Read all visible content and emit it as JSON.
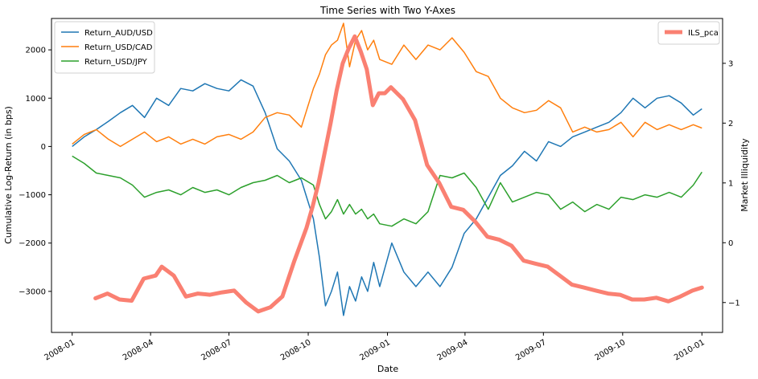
{
  "chart_data": {
    "type": "line",
    "title": "Time Series with Two Y-Axes",
    "xlabel": "Date",
    "ylabel_left": "Cumulative Log-Return (in bps)",
    "ylabel_right": "Market Illiquidity",
    "xlim": [
      "2007-12-08",
      "2010-01-25"
    ],
    "ylim_left": [
      -3850,
      2650
    ],
    "ylim_right": [
      -1.5,
      3.75
    ],
    "grid": false,
    "legend_left_position": "top-left",
    "legend_right_position": "top-right",
    "x_ticks": [
      {
        "date": "2008-01-01",
        "label": "2008-01"
      },
      {
        "date": "2008-04-01",
        "label": "2008-04"
      },
      {
        "date": "2008-07-01",
        "label": "2008-07"
      },
      {
        "date": "2008-10-01",
        "label": "2008-10"
      },
      {
        "date": "2009-01-01",
        "label": "2009-01"
      },
      {
        "date": "2009-04-01",
        "label": "2009-04"
      },
      {
        "date": "2009-07-01",
        "label": "2009-07"
      },
      {
        "date": "2009-10-01",
        "label": "2009-10"
      },
      {
        "date": "2010-01-01",
        "label": "2010-01"
      }
    ],
    "y_ticks_left": [
      {
        "value": 2000,
        "label": "2000"
      },
      {
        "value": 1000,
        "label": "1000"
      },
      {
        "value": 0,
        "label": "0"
      },
      {
        "value": -1000,
        "label": "−1000"
      },
      {
        "value": -2000,
        "label": "−2000"
      },
      {
        "value": -3000,
        "label": "−3000"
      }
    ],
    "y_ticks_right": [
      {
        "value": 3,
        "label": "3"
      },
      {
        "value": 2,
        "label": "2"
      },
      {
        "value": 1,
        "label": "1"
      },
      {
        "value": 0,
        "label": "0"
      },
      {
        "value": -1,
        "label": "−1"
      }
    ],
    "series_left": [
      {
        "name": "Return_AUD/USD",
        "color": "#1f77b4",
        "points": [
          [
            "2008-01-01",
            0
          ],
          [
            "2008-01-15",
            200
          ],
          [
            "2008-01-29",
            350
          ],
          [
            "2008-02-12",
            520
          ],
          [
            "2008-02-26",
            700
          ],
          [
            "2008-03-11",
            850
          ],
          [
            "2008-03-25",
            600
          ],
          [
            "2008-04-08",
            1000
          ],
          [
            "2008-04-22",
            850
          ],
          [
            "2008-05-06",
            1200
          ],
          [
            "2008-05-20",
            1150
          ],
          [
            "2008-06-03",
            1300
          ],
          [
            "2008-06-17",
            1200
          ],
          [
            "2008-07-01",
            1150
          ],
          [
            "2008-07-15",
            1380
          ],
          [
            "2008-07-29",
            1250
          ],
          [
            "2008-08-12",
            700
          ],
          [
            "2008-08-26",
            -50
          ],
          [
            "2008-09-09",
            -300
          ],
          [
            "2008-09-23",
            -700
          ],
          [
            "2008-10-07",
            -1500
          ],
          [
            "2008-10-14",
            -2300
          ],
          [
            "2008-10-21",
            -3300
          ],
          [
            "2008-10-28",
            -3000
          ],
          [
            "2008-11-04",
            -2600
          ],
          [
            "2008-11-11",
            -3500
          ],
          [
            "2008-11-18",
            -2900
          ],
          [
            "2008-11-25",
            -3200
          ],
          [
            "2008-12-02",
            -2700
          ],
          [
            "2008-12-09",
            -3000
          ],
          [
            "2008-12-16",
            -2400
          ],
          [
            "2008-12-23",
            -2900
          ],
          [
            "2009-01-06",
            -2000
          ],
          [
            "2009-01-20",
            -2600
          ],
          [
            "2009-02-03",
            -2900
          ],
          [
            "2009-02-17",
            -2600
          ],
          [
            "2009-03-03",
            -2900
          ],
          [
            "2009-03-17",
            -2500
          ],
          [
            "2009-03-31",
            -1800
          ],
          [
            "2009-04-14",
            -1500
          ],
          [
            "2009-04-28",
            -1050
          ],
          [
            "2009-05-12",
            -600
          ],
          [
            "2009-05-26",
            -400
          ],
          [
            "2009-06-09",
            -100
          ],
          [
            "2009-06-23",
            -300
          ],
          [
            "2009-07-07",
            100
          ],
          [
            "2009-07-21",
            0
          ],
          [
            "2009-08-04",
            200
          ],
          [
            "2009-08-18",
            300
          ],
          [
            "2009-09-01",
            400
          ],
          [
            "2009-09-15",
            500
          ],
          [
            "2009-09-29",
            700
          ],
          [
            "2009-10-13",
            1000
          ],
          [
            "2009-10-27",
            800
          ],
          [
            "2009-11-10",
            1000
          ],
          [
            "2009-11-24",
            1050
          ],
          [
            "2009-12-08",
            900
          ],
          [
            "2009-12-22",
            650
          ],
          [
            "2010-01-01",
            780
          ]
        ]
      },
      {
        "name": "Return_USD/CAD",
        "color": "#ff7f0e",
        "points": [
          [
            "2008-01-01",
            50
          ],
          [
            "2008-01-15",
            250
          ],
          [
            "2008-01-29",
            350
          ],
          [
            "2008-02-12",
            150
          ],
          [
            "2008-02-26",
            0
          ],
          [
            "2008-03-11",
            150
          ],
          [
            "2008-03-25",
            300
          ],
          [
            "2008-04-08",
            100
          ],
          [
            "2008-04-22",
            200
          ],
          [
            "2008-05-06",
            50
          ],
          [
            "2008-05-20",
            150
          ],
          [
            "2008-06-03",
            50
          ],
          [
            "2008-06-17",
            200
          ],
          [
            "2008-07-01",
            250
          ],
          [
            "2008-07-15",
            150
          ],
          [
            "2008-07-29",
            300
          ],
          [
            "2008-08-12",
            600
          ],
          [
            "2008-08-26",
            700
          ],
          [
            "2008-09-09",
            650
          ],
          [
            "2008-09-23",
            400
          ],
          [
            "2008-10-07",
            1200
          ],
          [
            "2008-10-14",
            1500
          ],
          [
            "2008-10-21",
            1900
          ],
          [
            "2008-10-28",
            2100
          ],
          [
            "2008-11-04",
            2200
          ],
          [
            "2008-11-11",
            2550
          ],
          [
            "2008-11-18",
            1650
          ],
          [
            "2008-11-25",
            2200
          ],
          [
            "2008-12-02",
            2400
          ],
          [
            "2008-12-09",
            2000
          ],
          [
            "2008-12-16",
            2200
          ],
          [
            "2008-12-23",
            1800
          ],
          [
            "2009-01-06",
            1700
          ],
          [
            "2009-01-20",
            2100
          ],
          [
            "2009-02-03",
            1800
          ],
          [
            "2009-02-17",
            2100
          ],
          [
            "2009-03-03",
            2000
          ],
          [
            "2009-03-17",
            2250
          ],
          [
            "2009-03-31",
            1950
          ],
          [
            "2009-04-14",
            1550
          ],
          [
            "2009-04-28",
            1450
          ],
          [
            "2009-05-12",
            1000
          ],
          [
            "2009-05-26",
            800
          ],
          [
            "2009-06-09",
            700
          ],
          [
            "2009-06-23",
            750
          ],
          [
            "2009-07-07",
            950
          ],
          [
            "2009-07-21",
            800
          ],
          [
            "2009-08-04",
            300
          ],
          [
            "2009-08-18",
            400
          ],
          [
            "2009-09-01",
            300
          ],
          [
            "2009-09-15",
            350
          ],
          [
            "2009-09-29",
            500
          ],
          [
            "2009-10-13",
            200
          ],
          [
            "2009-10-27",
            500
          ],
          [
            "2009-11-10",
            350
          ],
          [
            "2009-11-24",
            450
          ],
          [
            "2009-12-08",
            350
          ],
          [
            "2009-12-22",
            450
          ],
          [
            "2010-01-01",
            380
          ]
        ]
      },
      {
        "name": "Return_USD/JPY",
        "color": "#2ca02c",
        "points": [
          [
            "2008-01-01",
            -200
          ],
          [
            "2008-01-15",
            -350
          ],
          [
            "2008-01-29",
            -550
          ],
          [
            "2008-02-12",
            -600
          ],
          [
            "2008-02-26",
            -650
          ],
          [
            "2008-03-11",
            -800
          ],
          [
            "2008-03-25",
            -1050
          ],
          [
            "2008-04-08",
            -950
          ],
          [
            "2008-04-22",
            -900
          ],
          [
            "2008-05-06",
            -1000
          ],
          [
            "2008-05-20",
            -850
          ],
          [
            "2008-06-03",
            -950
          ],
          [
            "2008-06-17",
            -900
          ],
          [
            "2008-07-01",
            -1000
          ],
          [
            "2008-07-15",
            -850
          ],
          [
            "2008-07-29",
            -750
          ],
          [
            "2008-08-12",
            -700
          ],
          [
            "2008-08-26",
            -600
          ],
          [
            "2008-09-09",
            -750
          ],
          [
            "2008-09-23",
            -650
          ],
          [
            "2008-10-07",
            -800
          ],
          [
            "2008-10-14",
            -1200
          ],
          [
            "2008-10-21",
            -1500
          ],
          [
            "2008-10-28",
            -1350
          ],
          [
            "2008-11-04",
            -1100
          ],
          [
            "2008-11-11",
            -1400
          ],
          [
            "2008-11-18",
            -1200
          ],
          [
            "2008-11-25",
            -1400
          ],
          [
            "2008-12-02",
            -1300
          ],
          [
            "2008-12-09",
            -1500
          ],
          [
            "2008-12-16",
            -1400
          ],
          [
            "2008-12-23",
            -1600
          ],
          [
            "2009-01-06",
            -1650
          ],
          [
            "2009-01-20",
            -1500
          ],
          [
            "2009-02-03",
            -1600
          ],
          [
            "2009-02-17",
            -1350
          ],
          [
            "2009-03-03",
            -600
          ],
          [
            "2009-03-17",
            -650
          ],
          [
            "2009-03-31",
            -550
          ],
          [
            "2009-04-14",
            -850
          ],
          [
            "2009-04-28",
            -1300
          ],
          [
            "2009-05-12",
            -750
          ],
          [
            "2009-05-26",
            -1150
          ],
          [
            "2009-06-09",
            -1050
          ],
          [
            "2009-06-23",
            -950
          ],
          [
            "2009-07-07",
            -1000
          ],
          [
            "2009-07-21",
            -1300
          ],
          [
            "2009-08-04",
            -1150
          ],
          [
            "2009-08-18",
            -1350
          ],
          [
            "2009-09-01",
            -1200
          ],
          [
            "2009-09-15",
            -1300
          ],
          [
            "2009-09-29",
            -1050
          ],
          [
            "2009-10-13",
            -1100
          ],
          [
            "2009-10-27",
            -1000
          ],
          [
            "2009-11-10",
            -1050
          ],
          [
            "2009-11-24",
            -950
          ],
          [
            "2009-12-08",
            -1050
          ],
          [
            "2009-12-22",
            -800
          ],
          [
            "2010-01-01",
            -530
          ]
        ]
      }
    ],
    "series_right": [
      {
        "name": "ILS_pca",
        "color": "#fa8072",
        "points": [
          [
            "2008-01-28",
            -0.93
          ],
          [
            "2008-02-11",
            -0.85
          ],
          [
            "2008-02-25",
            -0.95
          ],
          [
            "2008-03-10",
            -0.97
          ],
          [
            "2008-03-24",
            -0.6
          ],
          [
            "2008-04-07",
            -0.55
          ],
          [
            "2008-04-14",
            -0.4
          ],
          [
            "2008-04-28",
            -0.55
          ],
          [
            "2008-05-12",
            -0.9
          ],
          [
            "2008-05-26",
            -0.85
          ],
          [
            "2008-06-09",
            -0.87
          ],
          [
            "2008-06-23",
            -0.83
          ],
          [
            "2008-07-07",
            -0.8
          ],
          [
            "2008-07-21",
            -1.0
          ],
          [
            "2008-08-04",
            -1.15
          ],
          [
            "2008-08-18",
            -1.08
          ],
          [
            "2008-09-01",
            -0.9
          ],
          [
            "2008-09-15",
            -0.3
          ],
          [
            "2008-09-29",
            0.25
          ],
          [
            "2008-10-06",
            0.6
          ],
          [
            "2008-10-13",
            1.0
          ],
          [
            "2008-10-20",
            1.5
          ],
          [
            "2008-10-27",
            2.0
          ],
          [
            "2008-11-03",
            2.55
          ],
          [
            "2008-11-10",
            3.0
          ],
          [
            "2008-11-17",
            3.25
          ],
          [
            "2008-11-24",
            3.45
          ],
          [
            "2008-12-01",
            3.2
          ],
          [
            "2008-12-08",
            2.9
          ],
          [
            "2008-12-15",
            2.3
          ],
          [
            "2008-12-22",
            2.5
          ],
          [
            "2008-12-29",
            2.5
          ],
          [
            "2009-01-05",
            2.6
          ],
          [
            "2009-01-19",
            2.4
          ],
          [
            "2009-02-02",
            2.05
          ],
          [
            "2009-02-16",
            1.3
          ],
          [
            "2009-03-02",
            1.0
          ],
          [
            "2009-03-16",
            0.6
          ],
          [
            "2009-03-30",
            0.55
          ],
          [
            "2009-04-13",
            0.35
          ],
          [
            "2009-04-27",
            0.1
          ],
          [
            "2009-05-11",
            0.05
          ],
          [
            "2009-05-25",
            -0.05
          ],
          [
            "2009-06-08",
            -0.3
          ],
          [
            "2009-06-22",
            -0.35
          ],
          [
            "2009-07-06",
            -0.4
          ],
          [
            "2009-07-20",
            -0.55
          ],
          [
            "2009-08-03",
            -0.7
          ],
          [
            "2009-08-17",
            -0.75
          ],
          [
            "2009-08-31",
            -0.8
          ],
          [
            "2009-09-14",
            -0.85
          ],
          [
            "2009-09-28",
            -0.87
          ],
          [
            "2009-10-12",
            -0.95
          ],
          [
            "2009-10-26",
            -0.95
          ],
          [
            "2009-11-09",
            -0.92
          ],
          [
            "2009-11-23",
            -0.98
          ],
          [
            "2009-12-07",
            -0.9
          ],
          [
            "2009-12-21",
            -0.8
          ],
          [
            "2010-01-01",
            -0.75
          ]
        ]
      }
    ]
  }
}
